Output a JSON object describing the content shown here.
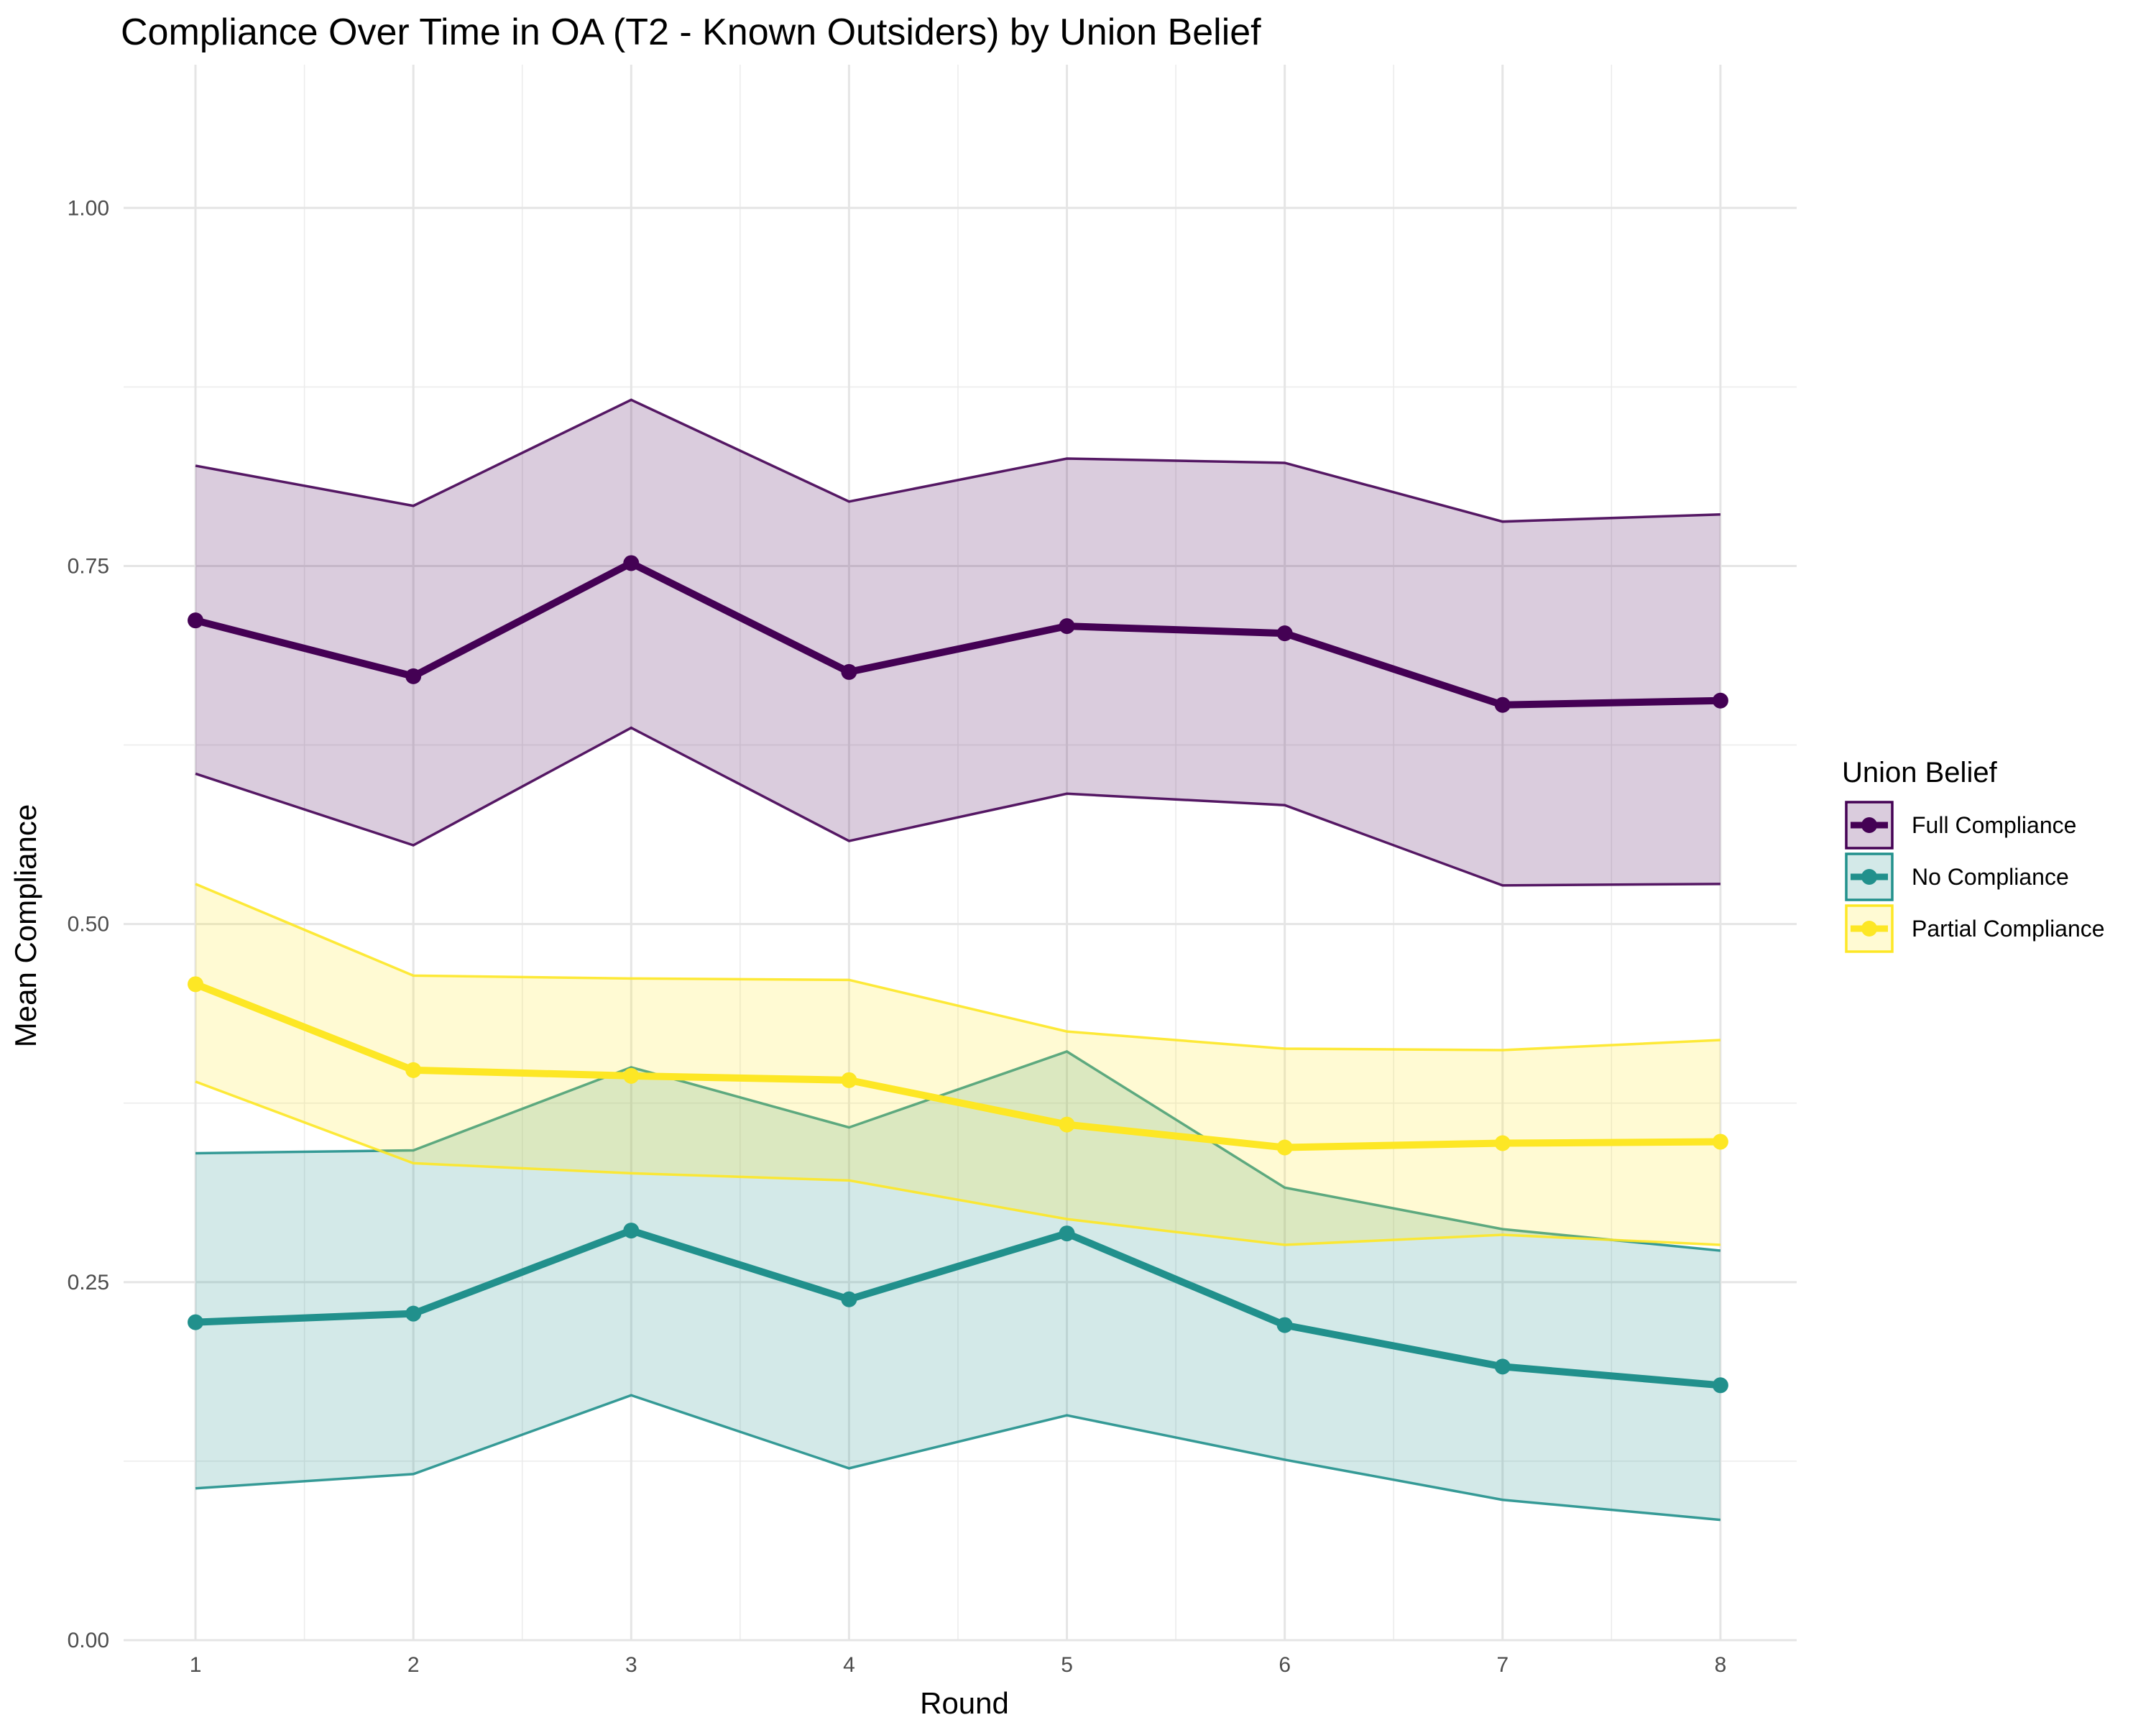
{
  "chart_data": {
    "type": "line",
    "title": "Compliance Over Time in OA (T2 - Known Outsiders) by Union Belief",
    "xlabel": "Round",
    "ylabel": "Mean Compliance",
    "x": [
      1,
      2,
      3,
      4,
      5,
      6,
      7,
      8
    ],
    "xlim": [
      0.67,
      8.35
    ],
    "ylim": [
      0,
      1.1
    ],
    "yticks": [
      0.0,
      0.25,
      0.5,
      0.75,
      1.0
    ],
    "ytick_labels": [
      "0.00",
      "0.25",
      "0.50",
      "0.75",
      "1.00"
    ],
    "xtick_labels": [
      "1",
      "2",
      "3",
      "4",
      "5",
      "6",
      "7",
      "8"
    ],
    "grid": true,
    "legend": {
      "title": "Union Belief",
      "position": "right"
    },
    "series": [
      {
        "name": "Full Compliance",
        "color": "#440154",
        "values": [
          0.712,
          0.673,
          0.752,
          0.676,
          0.708,
          0.703,
          0.653,
          0.656
        ],
        "lower": [
          0.605,
          0.555,
          0.637,
          0.558,
          0.591,
          0.583,
          0.527,
          0.528
        ],
        "upper": [
          0.82,
          0.792,
          0.866,
          0.795,
          0.825,
          0.822,
          0.781,
          0.786
        ]
      },
      {
        "name": "No Compliance",
        "color": "#21908C",
        "values": [
          0.222,
          0.228,
          0.286,
          0.238,
          0.284,
          0.22,
          0.191,
          0.178
        ],
        "lower": [
          0.106,
          0.116,
          0.171,
          0.12,
          0.157,
          0.126,
          0.098,
          0.084
        ],
        "upper": [
          0.34,
          0.342,
          0.4,
          0.358,
          0.411,
          0.316,
          0.287,
          0.272
        ]
      },
      {
        "name": "Partial Compliance",
        "color": "#FDE725",
        "values": [
          0.458,
          0.398,
          0.394,
          0.391,
          0.36,
          0.344,
          0.347,
          0.348
        ],
        "lower": [
          0.39,
          0.333,
          0.326,
          0.321,
          0.294,
          0.276,
          0.283,
          0.276
        ],
        "upper": [
          0.528,
          0.464,
          0.462,
          0.461,
          0.425,
          0.413,
          0.412,
          0.419
        ]
      }
    ]
  }
}
